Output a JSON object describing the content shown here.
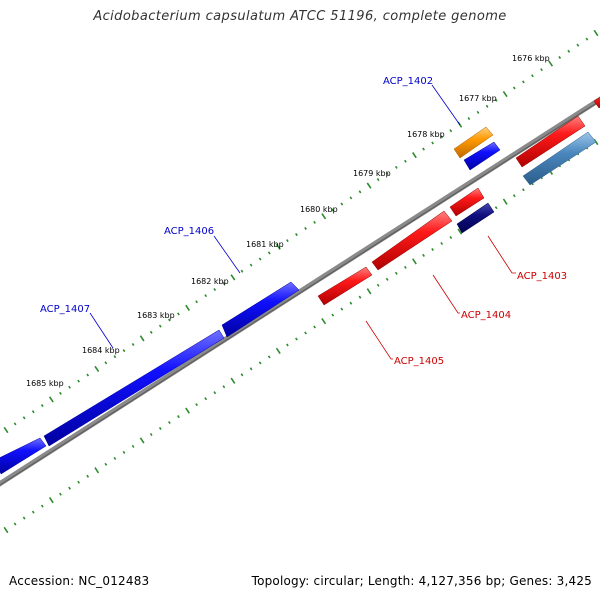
{
  "title": "Acidobacterium capsulatum ATCC 51196, complete genome",
  "footer": {
    "accession": "Accession: NC_012483",
    "topology": "Topology: circular; Length: 4,127,356 bp; Genes: 3,425"
  },
  "colors": {
    "backbone": "#7a7a7a",
    "tick": "#2e8b2e",
    "forward_gene": "#0000ee",
    "reverse_gene": "#ee0000",
    "orange_gene": "#ff9900",
    "steelblue_gene": "#4682b4",
    "navy_gene": "#000080",
    "forward_label": "#0000cc",
    "reverse_label": "#cc0000"
  },
  "ruler": {
    "labels": [
      "1676 kbp",
      "1677 kbp",
      "1678 kbp",
      "1679 kbp",
      "1680 kbp",
      "1681 kbp",
      "1682 kbp",
      "1683 kbp",
      "1684 kbp",
      "1685 kbp"
    ]
  },
  "genes": [
    {
      "id": "ACP_1402",
      "strand": "forward",
      "color_key": "orange_gene"
    },
    {
      "id": "ACP_1403",
      "strand": "reverse",
      "color_key": "reverse_gene"
    },
    {
      "id": "ACP_1404",
      "strand": "reverse",
      "color_key": "reverse_gene"
    },
    {
      "id": "ACP_1405",
      "strand": "reverse",
      "color_key": "reverse_gene"
    },
    {
      "id": "ACP_1406",
      "strand": "forward",
      "color_key": "forward_gene"
    },
    {
      "id": "ACP_1407",
      "strand": "forward",
      "color_key": "forward_gene"
    }
  ]
}
